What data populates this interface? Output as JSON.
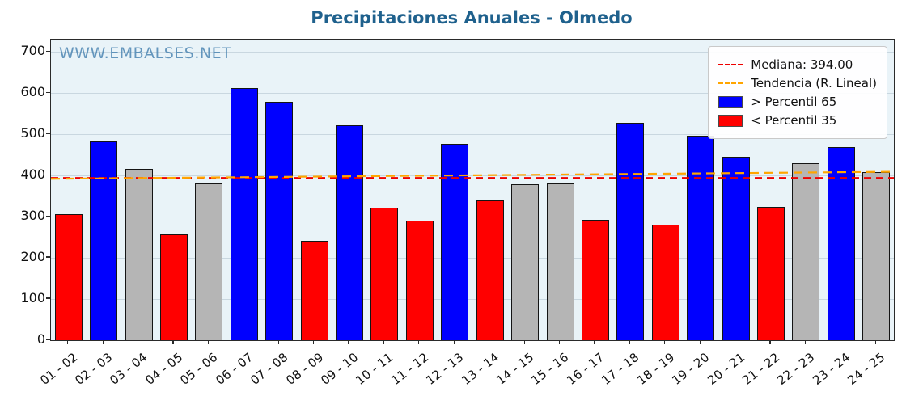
{
  "chart_data": {
    "type": "bar",
    "title": "Precipitaciones Anuales - Olmedo",
    "watermark": "WWW.EMBALSES.NET",
    "xlabel": "",
    "ylabel": "",
    "categories": [
      "01 - 02",
      "02 - 03",
      "03 - 04",
      "04 - 05",
      "05 - 06",
      "06 - 07",
      "07 - 08",
      "08 - 09",
      "09 - 10",
      "10 - 11",
      "11 - 12",
      "12 - 13",
      "13 - 14",
      "14 - 15",
      "15 - 16",
      "16 - 17",
      "17 - 18",
      "18 - 19",
      "19 - 20",
      "20 - 21",
      "21 - 22",
      "22 - 23",
      "23 - 24",
      "24 - 25"
    ],
    "values": [
      307,
      483,
      417,
      258,
      380,
      612,
      578,
      241,
      522,
      321,
      290,
      477,
      339,
      378,
      380,
      292,
      527,
      280,
      496,
      446,
      323,
      430,
      470,
      408
    ],
    "bar_classes": [
      "red",
      "blue",
      "gray",
      "red",
      "gray",
      "blue",
      "blue",
      "red",
      "blue",
      "red",
      "red",
      "blue",
      "red",
      "gray",
      "gray",
      "red",
      "blue",
      "red",
      "blue",
      "blue",
      "red",
      "gray",
      "blue",
      "gray"
    ],
    "palette": {
      "red": "#ff0000",
      "blue": "#0000ff",
      "gray": "#b5b5b5"
    },
    "median": 394,
    "median_color": "#ee0000",
    "trend": {
      "color": "#ffa500",
      "start_value": 392,
      "end_value": 409
    },
    "ylim": [
      0,
      730
    ],
    "yticks": [
      0,
      100,
      200,
      300,
      400,
      500,
      600,
      700
    ],
    "grid": true,
    "legend_position": "top-right",
    "legend": [
      {
        "label": "Mediana: 394.00",
        "marker": "dashed-line",
        "color": "#ee0000"
      },
      {
        "label": "Tendencia (R. Lineal)",
        "marker": "dashed-line",
        "color": "#ffa500"
      },
      {
        "label": "> Percentil 65",
        "marker": "patch",
        "color": "#0000ff"
      },
      {
        "label": "< Percentil 35",
        "marker": "patch",
        "color": "#ff0000"
      }
    ]
  }
}
